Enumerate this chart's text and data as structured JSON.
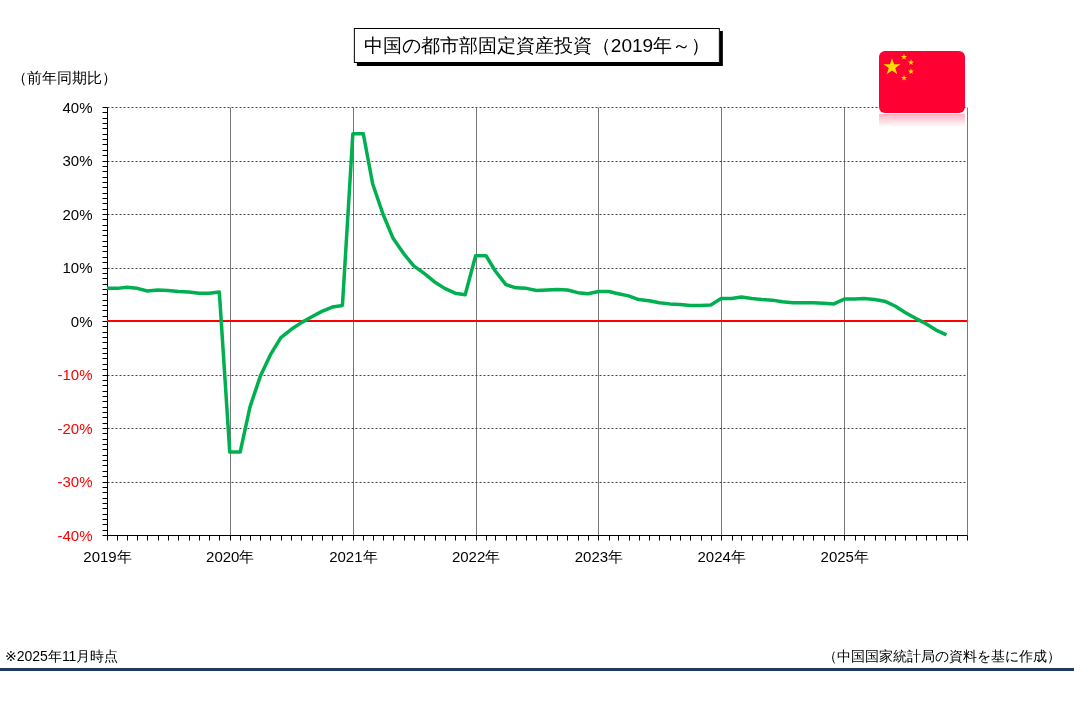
{
  "chart_data": {
    "type": "line",
    "title": "中国の都市部固定資産投資（2019年～）",
    "ylabel": "（前年同期比）",
    "annotations": [
      "※2025年11月時点",
      "（中国国家統計局の資料を基に作成）"
    ],
    "x": [
      "2019-01",
      "2019-02",
      "2019-03",
      "2019-04",
      "2019-05",
      "2019-06",
      "2019-07",
      "2019-08",
      "2019-09",
      "2019-10",
      "2019-11",
      "2019-12",
      "2020-01",
      "2020-02",
      "2020-03",
      "2020-04",
      "2020-05",
      "2020-06",
      "2020-07",
      "2020-08",
      "2020-09",
      "2020-10",
      "2020-11",
      "2020-12",
      "2021-01",
      "2021-02",
      "2021-03",
      "2021-04",
      "2021-05",
      "2021-06",
      "2021-07",
      "2021-08",
      "2021-09",
      "2021-10",
      "2021-11",
      "2021-12",
      "2022-01",
      "2022-02",
      "2022-03",
      "2022-04",
      "2022-05",
      "2022-06",
      "2022-07",
      "2022-08",
      "2022-09",
      "2022-10",
      "2022-11",
      "2022-12",
      "2023-01",
      "2023-02",
      "2023-03",
      "2023-04",
      "2023-05",
      "2023-06",
      "2023-07",
      "2023-08",
      "2023-09",
      "2023-10",
      "2023-11",
      "2023-12",
      "2024-01",
      "2024-02",
      "2024-03",
      "2024-04",
      "2024-05",
      "2024-06",
      "2024-07",
      "2024-08",
      "2024-09",
      "2024-10",
      "2024-11",
      "2024-12",
      "2025-01",
      "2025-02",
      "2025-03",
      "2025-04",
      "2025-05",
      "2025-06",
      "2025-07",
      "2025-08",
      "2025-09",
      "2025-10",
      "2025-11"
    ],
    "series": [
      {
        "color": "#00b050",
        "values": [
          6.1,
          6.1,
          6.3,
          6.1,
          5.6,
          5.8,
          5.7,
          5.5,
          5.4,
          5.2,
          5.2,
          5.4,
          -24.5,
          -24.5,
          -16.1,
          -10.3,
          -6.3,
          -3.1,
          -1.6,
          -0.3,
          0.8,
          1.8,
          2.6,
          2.9,
          35.0,
          35.0,
          25.6,
          19.9,
          15.4,
          12.6,
          10.3,
          8.9,
          7.3,
          6.1,
          5.2,
          4.9,
          12.2,
          12.2,
          9.3,
          6.8,
          6.2,
          6.1,
          5.7,
          5.8,
          5.9,
          5.8,
          5.3,
          5.1,
          5.5,
          5.5,
          5.1,
          4.7,
          4.0,
          3.8,
          3.4,
          3.2,
          3.1,
          2.9,
          2.9,
          3.0,
          4.2,
          4.2,
          4.5,
          4.2,
          4.0,
          3.9,
          3.6,
          3.4,
          3.4,
          3.4,
          3.3,
          3.2,
          4.1,
          4.1,
          4.2,
          4.0,
          3.7,
          2.8,
          1.6,
          0.5,
          -0.5,
          -1.7,
          -2.6
        ]
      }
    ],
    "xlim": [
      "2019-01",
      "2026-01"
    ],
    "xticks": [
      {
        "value": "2019-01",
        "label": "2019年"
      },
      {
        "value": "2019-02",
        "label": null
      },
      {
        "value": "2019-03",
        "label": null
      },
      {
        "value": "2019-04",
        "label": null
      },
      {
        "value": "2019-05",
        "label": null
      },
      {
        "value": "2019-06",
        "label": null
      },
      {
        "value": "2019-07",
        "label": null
      },
      {
        "value": "2019-08",
        "label": null
      },
      {
        "value": "2019-09",
        "label": null
      },
      {
        "value": "2019-10",
        "label": null
      },
      {
        "value": "2019-11",
        "label": null
      },
      {
        "value": "2019-12",
        "label": null
      },
      {
        "value": "2020-01",
        "label": "2020年"
      },
      {
        "value": "2020-02",
        "label": null
      },
      {
        "value": "2020-03",
        "label": null
      },
      {
        "value": "2020-04",
        "label": null
      },
      {
        "value": "2020-05",
        "label": null
      },
      {
        "value": "2020-06",
        "label": null
      },
      {
        "value": "2020-07",
        "label": null
      },
      {
        "value": "2020-08",
        "label": null
      },
      {
        "value": "2020-09",
        "label": null
      },
      {
        "value": "2020-10",
        "label": null
      },
      {
        "value": "2020-11",
        "label": null
      },
      {
        "value": "2020-12",
        "label": null
      },
      {
        "value": "2021-01",
        "label": "2021年"
      },
      {
        "value": "2021-02",
        "label": null
      },
      {
        "value": "2021-03",
        "label": null
      },
      {
        "value": "2021-04",
        "label": null
      },
      {
        "value": "2021-05",
        "label": null
      },
      {
        "value": "2021-06",
        "label": null
      },
      {
        "value": "2021-07",
        "label": null
      },
      {
        "value": "2021-08",
        "label": null
      },
      {
        "value": "2021-09",
        "label": null
      },
      {
        "value": "2021-10",
        "label": null
      },
      {
        "value": "2021-11",
        "label": null
      },
      {
        "value": "2021-12",
        "label": null
      },
      {
        "value": "2022-01",
        "label": "2022年"
      },
      {
        "value": "2022-02",
        "label": null
      },
      {
        "value": "2022-03",
        "label": null
      },
      {
        "value": "2022-04",
        "label": null
      },
      {
        "value": "2022-05",
        "label": null
      },
      {
        "value": "2022-06",
        "label": null
      },
      {
        "value": "2022-07",
        "label": null
      },
      {
        "value": "2022-08",
        "label": null
      },
      {
        "value": "2022-09",
        "label": null
      },
      {
        "value": "2022-10",
        "label": null
      },
      {
        "value": "2022-11",
        "label": null
      },
      {
        "value": "2022-12",
        "label": null
      },
      {
        "value": "2023-01",
        "label": "2023年"
      },
      {
        "value": "2023-02",
        "label": null
      },
      {
        "value": "2023-03",
        "label": null
      },
      {
        "value": "2023-04",
        "label": null
      },
      {
        "value": "2023-05",
        "label": null
      },
      {
        "value": "2023-06",
        "label": null
      },
      {
        "value": "2023-07",
        "label": null
      },
      {
        "value": "2023-08",
        "label": null
      },
      {
        "value": "2023-09",
        "label": null
      },
      {
        "value": "2023-10",
        "label": null
      },
      {
        "value": "2023-11",
        "label": null
      },
      {
        "value": "2023-12",
        "label": null
      },
      {
        "value": "2024-01",
        "label": "2024年"
      },
      {
        "value": "2024-02",
        "label": null
      },
      {
        "value": "2024-03",
        "label": null
      },
      {
        "value": "2024-04",
        "label": null
      },
      {
        "value": "2024-05",
        "label": null
      },
      {
        "value": "2024-06",
        "label": null
      },
      {
        "value": "2024-07",
        "label": null
      },
      {
        "value": "2024-08",
        "label": null
      },
      {
        "value": "2024-09",
        "label": null
      },
      {
        "value": "2024-10",
        "label": null
      },
      {
        "value": "2024-11",
        "label": null
      },
      {
        "value": "2024-12",
        "label": null
      },
      {
        "value": "2025-01",
        "label": "2025年"
      },
      {
        "value": "2025-02",
        "label": null
      },
      {
        "value": "2025-03",
        "label": null
      },
      {
        "value": "2025-04",
        "label": null
      },
      {
        "value": "2025-05",
        "label": null
      },
      {
        "value": "2025-06",
        "label": null
      },
      {
        "value": "2025-07",
        "label": null
      },
      {
        "value": "2025-08",
        "label": null
      },
      {
        "value": "2025-09",
        "label": null
      },
      {
        "value": "2025-10",
        "label": null
      },
      {
        "value": "2025-11",
        "label": null
      },
      {
        "value": "2025-12",
        "label": null
      },
      {
        "value": "2026-01",
        "label": null
      }
    ],
    "ylim": [
      -40,
      40
    ],
    "yticks": [
      {
        "value": -40,
        "label": "-40%"
      },
      {
        "value": -39,
        "label": null
      },
      {
        "value": -38,
        "label": null
      },
      {
        "value": -37,
        "label": null
      },
      {
        "value": -36,
        "label": null
      },
      {
        "value": -35,
        "label": null
      },
      {
        "value": -34,
        "label": null
      },
      {
        "value": -33,
        "label": null
      },
      {
        "value": -32,
        "label": null
      },
      {
        "value": -31,
        "label": null
      },
      {
        "value": -30,
        "label": "-30%"
      },
      {
        "value": -29,
        "label": null
      },
      {
        "value": -28,
        "label": null
      },
      {
        "value": -27,
        "label": null
      },
      {
        "value": -26,
        "label": null
      },
      {
        "value": -25,
        "label": null
      },
      {
        "value": -24,
        "label": null
      },
      {
        "value": -23,
        "label": null
      },
      {
        "value": -22,
        "label": null
      },
      {
        "value": -21,
        "label": null
      },
      {
        "value": -20,
        "label": "-20%"
      },
      {
        "value": -19,
        "label": null
      },
      {
        "value": -18,
        "label": null
      },
      {
        "value": -17,
        "label": null
      },
      {
        "value": -16,
        "label": null
      },
      {
        "value": -15,
        "label": null
      },
      {
        "value": -14,
        "label": null
      },
      {
        "value": -13,
        "label": null
      },
      {
        "value": -12,
        "label": null
      },
      {
        "value": -11,
        "label": null
      },
      {
        "value": -10,
        "label": "-10%"
      },
      {
        "value": -9,
        "label": null
      },
      {
        "value": -8,
        "label": null
      },
      {
        "value": -7,
        "label": null
      },
      {
        "value": -6,
        "label": null
      },
      {
        "value": -5,
        "label": null
      },
      {
        "value": -4,
        "label": null
      },
      {
        "value": -3,
        "label": null
      },
      {
        "value": -2,
        "label": null
      },
      {
        "value": -1,
        "label": null
      },
      {
        "value": 0,
        "label": "0%"
      },
      {
        "value": 1,
        "label": null
      },
      {
        "value": 2,
        "label": null
      },
      {
        "value": 3,
        "label": null
      },
      {
        "value": 4,
        "label": null
      },
      {
        "value": 5,
        "label": null
      },
      {
        "value": 6,
        "label": null
      },
      {
        "value": 7,
        "label": null
      },
      {
        "value": 8,
        "label": null
      },
      {
        "value": 9,
        "label": null
      },
      {
        "value": 10,
        "label": "10%"
      },
      {
        "value": 11,
        "label": null
      },
      {
        "value": 12,
        "label": null
      },
      {
        "value": 13,
        "label": null
      },
      {
        "value": 14,
        "label": null
      },
      {
        "value": 15,
        "label": null
      },
      {
        "value": 16,
        "label": null
      },
      {
        "value": 17,
        "label": null
      },
      {
        "value": 18,
        "label": null
      },
      {
        "value": 19,
        "label": null
      },
      {
        "value": 20,
        "label": "20%"
      },
      {
        "value": 21,
        "label": null
      },
      {
        "value": 22,
        "label": null
      },
      {
        "value": 23,
        "label": null
      },
      {
        "value": 24,
        "label": null
      },
      {
        "value": 25,
        "label": null
      },
      {
        "value": 26,
        "label": null
      },
      {
        "value": 27,
        "label": null
      },
      {
        "value": 28,
        "label": null
      },
      {
        "value": 29,
        "label": null
      },
      {
        "value": 30,
        "label": "30%"
      },
      {
        "value": 31,
        "label": null
      },
      {
        "value": 32,
        "label": null
      },
      {
        "value": 33,
        "label": null
      },
      {
        "value": 34,
        "label": null
      },
      {
        "value": 35,
        "label": null
      },
      {
        "value": 36,
        "label": null
      },
      {
        "value": 37,
        "label": null
      },
      {
        "value": 38,
        "label": null
      },
      {
        "value": 39,
        "label": null
      },
      {
        "value": 40,
        "label": "40%"
      }
    ],
    "ref_lines": [
      {
        "axis": "y",
        "value": 0,
        "color": "#ff0000"
      }
    ],
    "grid": true
  }
}
